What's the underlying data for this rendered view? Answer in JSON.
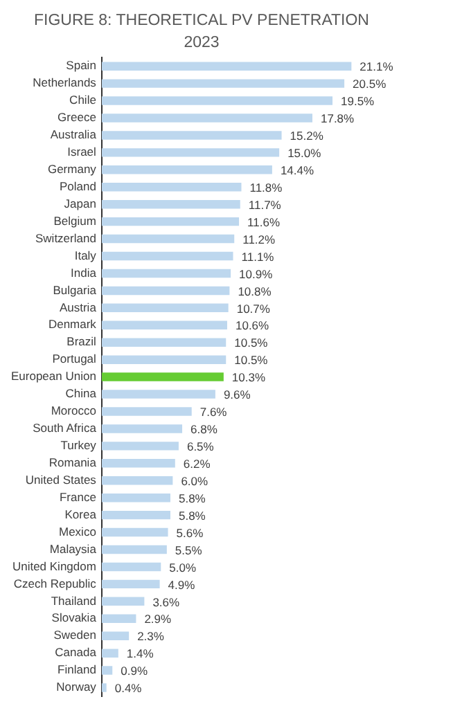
{
  "chart_data": {
    "type": "bar",
    "orientation": "horizontal",
    "title": "FIGURE 8: THEORETICAL PV PENETRATION",
    "subtitle": "2023",
    "categories": [
      "Spain",
      "Netherlands",
      "Chile",
      "Greece",
      "Australia",
      "Israel",
      "Germany",
      "Poland",
      "Japan",
      "Belgium",
      "Switzerland",
      "Italy",
      "India",
      "Bulgaria",
      "Austria",
      "Denmark",
      "Brazil",
      "Portugal",
      "European Union",
      "China",
      "Morocco",
      "South Africa",
      "Turkey",
      "Romania",
      "United States",
      "France",
      "Korea",
      "Mexico",
      "Malaysia",
      "United Kingdom",
      "Czech Republic",
      "Thailand",
      "Slovakia",
      "Sweden",
      "Canada",
      "Finland",
      "Norway"
    ],
    "values": [
      21.1,
      20.5,
      19.5,
      17.8,
      15.2,
      15.0,
      14.4,
      11.8,
      11.7,
      11.6,
      11.2,
      11.1,
      10.9,
      10.8,
      10.7,
      10.6,
      10.5,
      10.5,
      10.3,
      9.6,
      7.6,
      6.8,
      6.5,
      6.2,
      6.0,
      5.8,
      5.8,
      5.6,
      5.5,
      5.0,
      4.9,
      3.6,
      2.9,
      2.3,
      1.4,
      0.9,
      0.4
    ],
    "value_labels": [
      "21.1%",
      "20.5%",
      "19.5%",
      "17.8%",
      "15.2%",
      "15.0%",
      "14.4%",
      "11.8%",
      "11.7%",
      "11.6%",
      "11.2%",
      "11.1%",
      "10.9%",
      "10.8%",
      "10.7%",
      "10.6%",
      "10.5%",
      "10.5%",
      "10.3%",
      "9.6%",
      "7.6%",
      "6.8%",
      "6.5%",
      "6.2%",
      "6.0%",
      "5.8%",
      "5.8%",
      "5.6%",
      "5.5%",
      "5.0%",
      "4.9%",
      "3.6%",
      "2.9%",
      "2.3%",
      "1.4%",
      "0.9%",
      "0.4%"
    ],
    "colors": [
      "#bdd7ee",
      "#bdd7ee",
      "#bdd7ee",
      "#bdd7ee",
      "#bdd7ee",
      "#bdd7ee",
      "#bdd7ee",
      "#bdd7ee",
      "#bdd7ee",
      "#bdd7ee",
      "#bdd7ee",
      "#bdd7ee",
      "#bdd7ee",
      "#bdd7ee",
      "#bdd7ee",
      "#bdd7ee",
      "#bdd7ee",
      "#bdd7ee",
      "#66cc33",
      "#bdd7ee",
      "#bdd7ee",
      "#bdd7ee",
      "#bdd7ee",
      "#bdd7ee",
      "#bdd7ee",
      "#bdd7ee",
      "#bdd7ee",
      "#bdd7ee",
      "#bdd7ee",
      "#bdd7ee",
      "#bdd7ee",
      "#bdd7ee",
      "#bdd7ee",
      "#bdd7ee",
      "#bdd7ee",
      "#bdd7ee",
      "#bdd7ee"
    ],
    "grid": false,
    "legend": false
  }
}
